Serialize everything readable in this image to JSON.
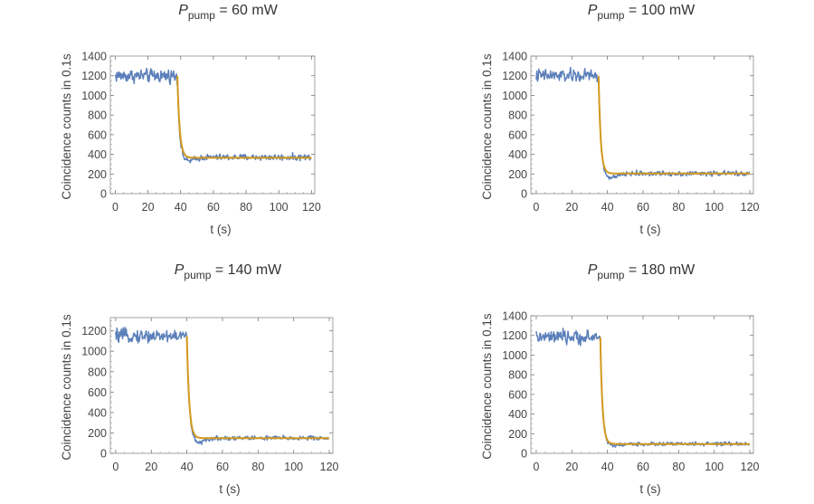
{
  "figure": {
    "background": "#ffffff"
  },
  "chart_data": [
    {
      "type": "scatter",
      "title_symbol": "P",
      "title_subscript": "pump",
      "title_value": " = 60 mW",
      "xlabel": "t (s)",
      "ylabel": "Coincidence counts in 0.1s",
      "xlim": [
        -3,
        122
      ],
      "ylim": [
        0,
        1400
      ],
      "xticks": [
        0,
        20,
        40,
        60,
        80,
        100,
        120
      ],
      "yticks": [
        0,
        200,
        400,
        600,
        800,
        1000,
        1200,
        1400
      ],
      "data_color": "#5b7fba",
      "fit_color": "#d49a1e",
      "series": [
        {
          "name": "",
          "role": "data",
          "t_drop": 38.0,
          "level_before": 1200,
          "noise_before": 75,
          "level_after": 370,
          "noise_after": 35,
          "undershoot": 40,
          "x_end": 120
        },
        {
          "name": "",
          "role": "fit",
          "t_drop": 38.0,
          "level_before": 1200,
          "tau": 1.4,
          "level_after": 365,
          "x_end": 120
        }
      ]
    },
    {
      "type": "scatter",
      "title_symbol": "P",
      "title_subscript": "pump",
      "title_value": " = 100 mW",
      "xlabel": "t (s)",
      "ylabel": "Coincidence counts in 0.1s",
      "xlim": [
        -3,
        122
      ],
      "ylim": [
        0,
        1400
      ],
      "xticks": [
        0,
        20,
        40,
        60,
        80,
        100,
        120
      ],
      "yticks": [
        0,
        200,
        400,
        600,
        800,
        1000,
        1200,
        1400
      ],
      "data_color": "#5b7fba",
      "fit_color": "#d49a1e",
      "series": [
        {
          "name": "",
          "role": "data",
          "t_drop": 35.0,
          "level_before": 1200,
          "noise_before": 75,
          "level_after": 205,
          "noise_after": 28,
          "undershoot": 50,
          "x_end": 120
        },
        {
          "name": "",
          "role": "fit",
          "t_drop": 35.0,
          "level_before": 1200,
          "tau": 1.2,
          "level_after": 205,
          "x_end": 120
        }
      ]
    },
    {
      "type": "scatter",
      "title_symbol": "P",
      "title_subscript": "pump",
      "title_value": " = 140 mW",
      "xlabel": "t (s)",
      "ylabel": "Coincidence counts in 0.1s",
      "xlim": [
        -3,
        122
      ],
      "ylim": [
        0,
        1330
      ],
      "xticks": [
        0,
        20,
        40,
        60,
        80,
        100,
        120
      ],
      "yticks": [
        0,
        200,
        400,
        600,
        800,
        1000,
        1200
      ],
      "data_color": "#5b7fba",
      "fit_color": "#d49a1e",
      "series": [
        {
          "name": "",
          "role": "data",
          "t_drop": 40.0,
          "level_before": 1150,
          "noise_before": 70,
          "level_after": 150,
          "noise_after": 25,
          "undershoot": 45,
          "x_end": 120
        },
        {
          "name": "",
          "role": "fit",
          "t_drop": 40.0,
          "level_before": 1150,
          "tau": 1.3,
          "level_after": 148,
          "x_end": 120
        }
      ]
    },
    {
      "type": "scatter",
      "title_symbol": "P",
      "title_subscript": "pump",
      "title_value": " = 180 mW",
      "xlabel": "t (s)",
      "ylabel": "Coincidence counts in 0.1s",
      "xlim": [
        -3,
        122
      ],
      "ylim": [
        0,
        1400
      ],
      "xticks": [
        0,
        20,
        40,
        60,
        80,
        100,
        120
      ],
      "yticks": [
        0,
        200,
        400,
        600,
        800,
        1000,
        1200,
        1400
      ],
      "data_color": "#5b7fba",
      "fit_color": "#d49a1e",
      "series": [
        {
          "name": "",
          "role": "data",
          "t_drop": 36.0,
          "level_before": 1180,
          "noise_before": 75,
          "level_after": 95,
          "noise_after": 22,
          "undershoot": 20,
          "x_end": 120
        },
        {
          "name": "",
          "role": "fit",
          "t_drop": 36.0,
          "level_before": 1180,
          "tau": 1.2,
          "level_after": 95,
          "x_end": 120
        }
      ]
    }
  ]
}
